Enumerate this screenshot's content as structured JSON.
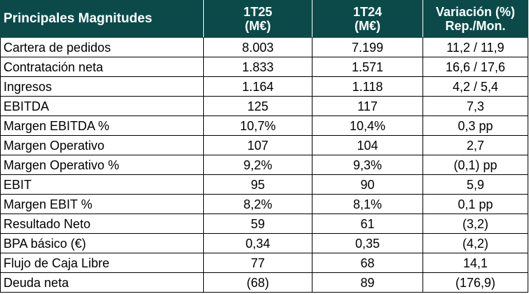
{
  "header": {
    "label": "Principales Magnitudes",
    "col1": [
      "1T25",
      "(M€)"
    ],
    "col2": [
      "1T24",
      "(M€)"
    ],
    "col3": [
      "Variación (%)",
      "Rep./Mon."
    ]
  },
  "rows": [
    {
      "label": "Cartera de pedidos",
      "t25": "8.003",
      "t24": "7.199",
      "var": "11,2 / 11,9"
    },
    {
      "label": "Contratación neta",
      "t25": "1.833",
      "t24": "1.571",
      "var": "16,6 / 17,6"
    },
    {
      "label": "Ingresos",
      "t25": "1.164",
      "t24": "1.118",
      "var": "4,2 / 5,4"
    },
    {
      "label": "EBITDA",
      "t25": "125",
      "t24": "117",
      "var": "7,3"
    },
    {
      "label": "Margen EBITDA %",
      "t25": "10,7%",
      "t24": "10,4%",
      "var": "0,3 pp"
    },
    {
      "label": "Margen Operativo",
      "t25": "107",
      "t24": "104",
      "var": "2,7"
    },
    {
      "label": "Margen Operativo %",
      "t25": "9,2%",
      "t24": "9,3%",
      "var": "(0,1) pp"
    },
    {
      "label": "EBIT",
      "t25": "95",
      "t24": "90",
      "var": "5,9"
    },
    {
      "label": "Margen EBIT %",
      "t25": "8,2%",
      "t24": "8,1%",
      "var": "0,1 pp"
    },
    {
      "label": "Resultado Neto",
      "t25": "59",
      "t24": "61",
      "var": "(3,2)"
    },
    {
      "label": "BPA básico (€)",
      "t25": "0,34",
      "t24": "0,35",
      "var": "(4,2)"
    },
    {
      "label": "Flujo de Caja Libre",
      "t25": "77",
      "t24": "68",
      "var": "14,1"
    },
    {
      "label": "Deuda neta",
      "t25": "(68)",
      "t24": "89",
      "var": "(176,9)"
    }
  ],
  "colors": {
    "header_bg": "#0c4a4a",
    "header_text": "#ffffff"
  }
}
